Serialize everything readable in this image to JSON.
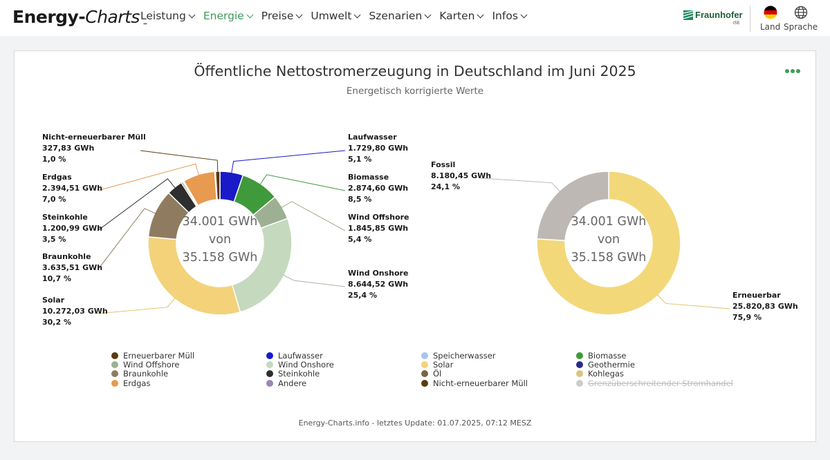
{
  "header": {
    "brand_bold": "Energy-",
    "brand_italic": "Charts",
    "nav": [
      {
        "label": "Leistung",
        "active": false
      },
      {
        "label": "Energie",
        "active": true
      },
      {
        "label": "Preise",
        "active": false
      },
      {
        "label": "Umwelt",
        "active": false
      },
      {
        "label": "Szenarien",
        "active": false
      },
      {
        "label": "Karten",
        "active": false
      },
      {
        "label": "Infos",
        "active": false
      }
    ],
    "fraunhofer": "Fraunhofer",
    "fraunhofer_sub": "ISE",
    "land_label": "Land",
    "sprache_label": "Sprache"
  },
  "chart_data": [
    {
      "type": "pie",
      "title": "Öffentliche Nettostromerzeugung in Deutschland im Juni 2025",
      "subtitle": "Energetisch korrigierte Werte",
      "center_text": [
        "34.001 GWh",
        "von",
        "35.158 GWh"
      ],
      "unit": "GWh",
      "total": 35158,
      "slices": [
        {
          "name": "Erneuerbarer Müll",
          "value": 0,
          "color": "#5a3a10"
        },
        {
          "name": "Laufwasser",
          "value": 1729.8,
          "percent": 5.1,
          "value_label": "1.729,80 GWh",
          "percent_label": "5,1 %",
          "color": "#1a1ac8",
          "labeled": true
        },
        {
          "name": "Biomasse",
          "value": 2874.6,
          "percent": 8.5,
          "value_label": "2.874,60 GWh",
          "percent_label": "8,5 %",
          "color": "#3f9a3c",
          "labeled": true
        },
        {
          "name": "Wind Offshore",
          "value": 1845.85,
          "percent": 5.4,
          "value_label": "1.845,85 GWh",
          "percent_label": "5,4 %",
          "color": "#9eb093",
          "labeled": true
        },
        {
          "name": "Wind Onshore",
          "value": 8644.52,
          "percent": 25.4,
          "value_label": "8.644,52 GWh",
          "percent_label": "25,4 %",
          "color": "#c5d9be",
          "labeled": true
        },
        {
          "name": "Solar",
          "value": 10272.03,
          "percent": 30.2,
          "value_label": "10.272,03 GWh",
          "percent_label": "30,2 %",
          "color": "#f3d27a",
          "labeled": true
        },
        {
          "name": "Braunkohle",
          "value": 3635.51,
          "percent": 10.7,
          "value_label": "3.635,51 GWh",
          "percent_label": "10,7 %",
          "color": "#8f7c60",
          "labeled": true
        },
        {
          "name": "Steinkohle",
          "value": 1200.99,
          "percent": 3.5,
          "value_label": "1.200,99 GWh",
          "percent_label": "3,5 %",
          "color": "#2e2e2e",
          "labeled": true
        },
        {
          "name": "Öl",
          "value": 120,
          "color": "#7a6440"
        },
        {
          "name": "Kohlegas",
          "value": 100,
          "color": "#d9c484"
        },
        {
          "name": "Erdgas",
          "value": 2394.51,
          "percent": 7.0,
          "value_label": "2.394,51 GWh",
          "percent_label": "7,0 %",
          "color": "#e89a50",
          "labeled": true
        },
        {
          "name": "Andere",
          "value": 60,
          "color": "#9a86b8"
        },
        {
          "name": "Nicht-erneuerbarer Müll",
          "value": 327.83,
          "percent": 1.0,
          "value_label": "327,83 GWh",
          "percent_label": "1,0 %",
          "color": "#5a3a10",
          "labeled": true
        }
      ]
    },
    {
      "type": "pie",
      "center_text": [
        "34.001 GWh",
        "von",
        "35.158 GWh"
      ],
      "unit": "GWh",
      "slices": [
        {
          "name": "Erneuerbar",
          "value": 25820.83,
          "percent": 75.9,
          "value_label": "25.820,83 GWh",
          "percent_label": "75,9 %",
          "color": "#f3d87a",
          "labeled": true
        },
        {
          "name": "Fossil",
          "value": 8180.45,
          "percent": 24.1,
          "value_label": "8.180,45 GWh",
          "percent_label": "24,1 %",
          "color": "#bdb8b4",
          "labeled": true
        }
      ]
    }
  ],
  "legend": [
    {
      "label": "Erneuerbarer Müll",
      "color": "#5a3a10"
    },
    {
      "label": "Laufwasser",
      "color": "#1a1ac8"
    },
    {
      "label": "Speicherwasser",
      "color": "#a9c4f0"
    },
    {
      "label": "Biomasse",
      "color": "#3f9a3c"
    },
    {
      "label": "Wind Offshore",
      "color": "#9eb093"
    },
    {
      "label": "Wind Onshore",
      "color": "#c5d9be"
    },
    {
      "label": "Solar",
      "color": "#f3d27a"
    },
    {
      "label": "Geothermie",
      "color": "#2a2a8c"
    },
    {
      "label": "Braunkohle",
      "color": "#8f7c60"
    },
    {
      "label": "Steinkohle",
      "color": "#2e2e2e"
    },
    {
      "label": "Öl",
      "color": "#7a6440"
    },
    {
      "label": "Kohlegas",
      "color": "#d9c484"
    },
    {
      "label": "Erdgas",
      "color": "#e89a50"
    },
    {
      "label": "Andere",
      "color": "#9a86b8"
    },
    {
      "label": "Nicht-erneuerbarer Müll",
      "color": "#5a3a10"
    },
    {
      "label": "Grenzüberschreitender Stromhandel",
      "color": "#cccccc",
      "hidden": true
    }
  ],
  "footer": "Energy-Charts.info - letztes Update: 01.07.2025, 07:12 MESZ"
}
